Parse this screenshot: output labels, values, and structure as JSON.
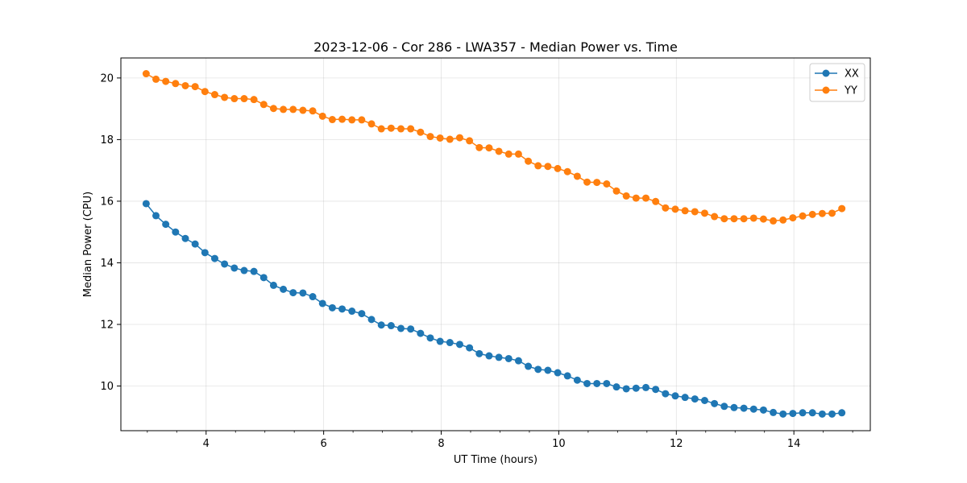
{
  "chart_data": {
    "type": "line",
    "title": "2023-12-06 - Cor 286 - LWA357 - Median Power vs. Time",
    "xlabel": "UT Time (hours)",
    "ylabel": "Median Power (CPU)",
    "xlim": [
      2.55,
      15.3
    ],
    "ylim": [
      8.55,
      20.65
    ],
    "xticks": [
      4,
      6,
      8,
      10,
      12,
      14
    ],
    "xticklabels": [
      "4",
      "6",
      "8",
      "10",
      "12",
      "14"
    ],
    "x_minor_step": 0.5,
    "yticks": [
      10,
      12,
      14,
      16,
      18,
      20
    ],
    "yticklabels": [
      "10",
      "12",
      "14",
      "16",
      "18",
      "20"
    ],
    "grid": true,
    "legend_position": "top-right",
    "x_start": 2.98,
    "x_step": 0.1667,
    "series": [
      {
        "name": "XX",
        "color": "#1f77b4",
        "values": [
          15.92,
          15.53,
          15.25,
          15.0,
          14.79,
          14.61,
          14.33,
          14.14,
          13.96,
          13.83,
          13.75,
          13.72,
          13.52,
          13.27,
          13.14,
          13.03,
          13.02,
          12.9,
          12.68,
          12.54,
          12.5,
          12.43,
          12.35,
          12.16,
          11.98,
          11.96,
          11.87,
          11.85,
          11.71,
          11.56,
          11.45,
          11.41,
          11.35,
          11.24,
          11.05,
          10.98,
          10.93,
          10.89,
          10.82,
          10.64,
          10.54,
          10.51,
          10.43,
          10.33,
          10.19,
          10.08,
          10.08,
          10.08,
          9.97,
          9.91,
          9.93,
          9.95,
          9.89,
          9.75,
          9.68,
          9.63,
          9.58,
          9.53,
          9.43,
          9.34,
          9.3,
          9.28,
          9.25,
          9.22,
          9.14,
          9.09,
          9.11,
          9.13,
          9.13,
          9.09,
          9.09,
          9.13
        ]
      },
      {
        "name": "YY",
        "color": "#ff7f0e",
        "values": [
          20.14,
          19.96,
          19.89,
          19.82,
          19.75,
          19.72,
          19.56,
          19.46,
          19.37,
          19.33,
          19.33,
          19.3,
          19.14,
          19.01,
          18.98,
          18.98,
          18.95,
          18.93,
          18.76,
          18.65,
          18.66,
          18.64,
          18.64,
          18.51,
          18.35,
          18.37,
          18.35,
          18.35,
          18.24,
          18.1,
          18.05,
          18.01,
          18.06,
          17.96,
          17.74,
          17.73,
          17.62,
          17.53,
          17.53,
          17.3,
          17.15,
          17.13,
          17.06,
          16.96,
          16.81,
          16.62,
          16.61,
          16.56,
          16.33,
          16.17,
          16.1,
          16.1,
          15.99,
          15.78,
          15.74,
          15.69,
          15.66,
          15.61,
          15.5,
          15.43,
          15.43,
          15.43,
          15.45,
          15.42,
          15.36,
          15.39,
          15.46,
          15.52,
          15.57,
          15.6,
          15.61,
          15.76
        ]
      }
    ]
  }
}
